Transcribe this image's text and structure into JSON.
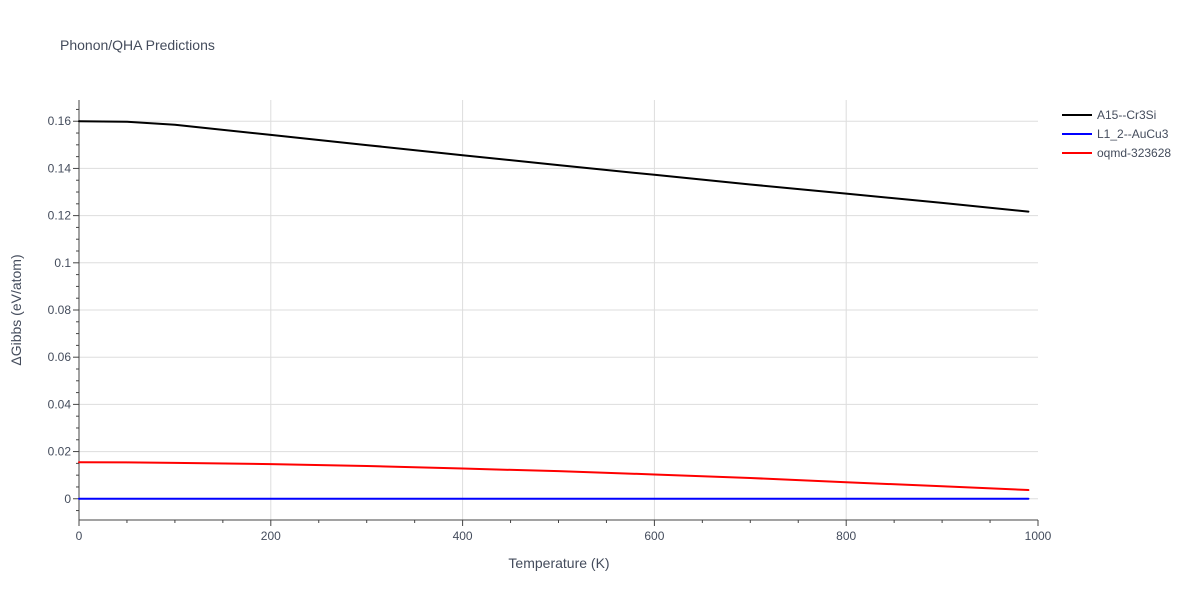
{
  "chart_data": {
    "type": "line",
    "title": "Phonon/QHA Predictions",
    "xlabel": "Temperature (K)",
    "ylabel": "ΔGibbs (eV/atom)",
    "xlim": [
      0,
      1000
    ],
    "ylim": [
      -0.009,
      0.169
    ],
    "x_ticks": [
      0,
      200,
      400,
      600,
      800,
      1000
    ],
    "x_tick_labels": [
      "0",
      "200",
      "400",
      "600",
      "800",
      "1000"
    ],
    "y_ticks": [
      0,
      0.02,
      0.04,
      0.06,
      0.08,
      0.1,
      0.12,
      0.14,
      0.16
    ],
    "y_tick_labels": [
      "0",
      "0.02",
      "0.04",
      "0.06",
      "0.08",
      "0.1",
      "0.12",
      "0.14",
      "0.16"
    ],
    "grid": true,
    "legend_position": "top-right",
    "series": [
      {
        "name": "A15--Cr3Si",
        "color": "#000000",
        "x": [
          0,
          50,
          100,
          200,
          300,
          400,
          500,
          600,
          700,
          800,
          900,
          990
        ],
        "y": [
          0.16,
          0.1598,
          0.1585,
          0.1542,
          0.1499,
          0.1456,
          0.1414,
          0.1373,
          0.1332,
          0.1293,
          0.1254,
          0.1217
        ]
      },
      {
        "name": "L1_2--AuCu3",
        "color": "#0000ff",
        "x": [
          0,
          100,
          200,
          300,
          400,
          500,
          600,
          700,
          800,
          900,
          990
        ],
        "y": [
          0,
          0,
          0,
          0,
          0,
          0,
          0,
          0,
          0,
          0,
          0
        ]
      },
      {
        "name": "oqmd-323628",
        "color": "#ff0000",
        "x": [
          0,
          50,
          100,
          200,
          300,
          400,
          500,
          600,
          700,
          800,
          900,
          990
        ],
        "y": [
          0.0155,
          0.0154,
          0.0152,
          0.0147,
          0.0139,
          0.0128,
          0.0117,
          0.0103,
          0.0088,
          0.007,
          0.0053,
          0.0037
        ]
      }
    ]
  }
}
